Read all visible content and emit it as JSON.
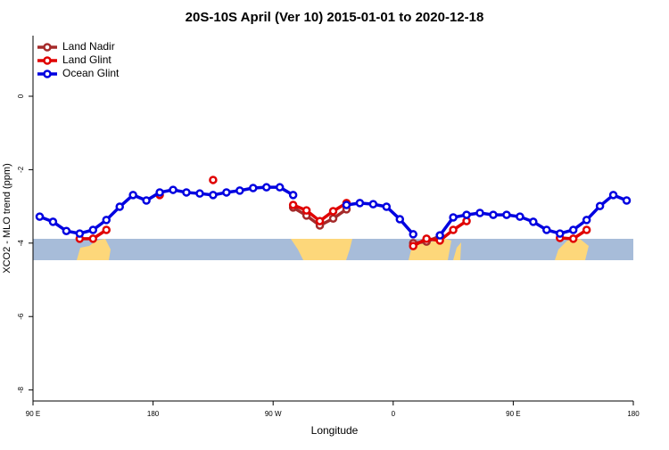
{
  "chart_data": {
    "type": "line",
    "title": "20S-10S April (Ver 10)   2015-01-01 to 2020-12-18",
    "xlabel": "Longitude",
    "ylabel": "XCO2 - MLO trend (ppm)",
    "x": [
      95,
      105,
      115,
      125,
      135,
      145,
      155,
      165,
      175,
      185,
      195,
      205,
      215,
      225,
      235,
      245,
      255,
      265,
      275,
      285,
      295,
      305,
      315,
      325,
      335,
      345,
      355,
      365,
      375,
      385,
      395,
      405,
      415,
      425,
      435,
      445,
      455,
      465,
      475,
      485,
      495,
      505,
      515,
      525,
      535
    ],
    "series": [
      {
        "name": "Land Nadir",
        "color": "#a52a2a",
        "values": [
          null,
          null,
          null,
          null,
          null,
          null,
          null,
          null,
          null,
          null,
          null,
          null,
          null,
          null,
          null,
          null,
          null,
          null,
          null,
          -3.03,
          -3.25,
          -3.52,
          -3.33,
          -3.08,
          null,
          null,
          null,
          null,
          -4.0,
          -3.96,
          -3.81,
          null,
          null,
          null,
          null,
          null,
          null,
          null,
          null,
          null,
          null,
          null,
          null,
          null,
          null
        ]
      },
      {
        "name": "Land Glint",
        "color": "#e00000",
        "values": [
          null,
          null,
          null,
          -3.88,
          -3.88,
          -3.64,
          null,
          null,
          null,
          -2.69,
          null,
          null,
          null,
          -2.28,
          null,
          null,
          null,
          null,
          null,
          -2.96,
          -3.11,
          -3.4,
          -3.13,
          -2.91,
          null,
          null,
          null,
          null,
          -4.08,
          -3.88,
          -3.93,
          -3.64,
          -3.4,
          null,
          null,
          null,
          null,
          null,
          null,
          -3.86,
          -3.88,
          -3.64,
          null,
          null,
          null
        ]
      },
      {
        "name": "Ocean Glint",
        "color": "#0000e0",
        "values": [
          -3.28,
          -3.42,
          -3.67,
          -3.74,
          -3.64,
          -3.37,
          -3.01,
          -2.69,
          -2.84,
          -2.62,
          -2.55,
          -2.62,
          -2.65,
          -2.69,
          -2.62,
          -2.57,
          -2.5,
          -2.48,
          -2.48,
          -2.69,
          null,
          null,
          null,
          -2.96,
          -2.91,
          -2.94,
          -3.01,
          -3.35,
          -3.76,
          null,
          -3.79,
          -3.3,
          -3.23,
          -3.18,
          -3.23,
          -3.23,
          -3.28,
          -3.42,
          -3.64,
          -3.74,
          -3.64,
          -3.37,
          -2.99,
          -2.69,
          -2.84
        ]
      }
    ],
    "xlim": [
      90,
      540
    ],
    "xticks": [
      {
        "value": 90,
        "label": "90 E"
      },
      180,
      {
        "value": 270,
        "label": "90 W"
      },
      {
        "value": 360,
        "label": "0"
      },
      {
        "value": 450,
        "label": "90 E"
      },
      {
        "value": 540,
        "label": "180"
      }
    ],
    "ylim": [
      -8.3,
      1.65
    ],
    "yticks": [
      0,
      -2,
      -4,
      -6,
      -8
    ],
    "legend": "upper left"
  }
}
